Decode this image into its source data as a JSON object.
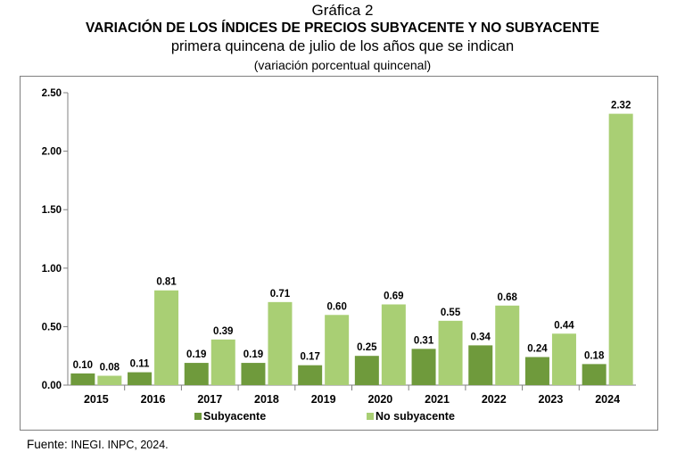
{
  "header": {
    "figure_label": "Gráfica 2",
    "title": "VARIACIÓN DE LOS ÍNDICES DE PRECIOS SUBYACENTE Y NO SUBYACENTE",
    "subtitle": "primera quincena de julio de los años que se indican",
    "unit_note": "(variación porcentual quincenal)"
  },
  "footer": {
    "source_label": "Fuente:",
    "source_text": "INEGI. INPC, 2024."
  },
  "colors": {
    "subyacente": "#6f9a3c",
    "no_subyacente": "#a9cf74"
  },
  "chart_data": {
    "type": "bar",
    "categories": [
      "2015",
      "2016",
      "2017",
      "2018",
      "2019",
      "2020",
      "2021",
      "2022",
      "2023",
      "2024"
    ],
    "series": [
      {
        "name": "Subyacente",
        "values": [
          0.1,
          0.11,
          0.19,
          0.19,
          0.17,
          0.25,
          0.31,
          0.34,
          0.24,
          0.18
        ]
      },
      {
        "name": "No subyacente",
        "values": [
          0.08,
          0.81,
          0.39,
          0.71,
          0.6,
          0.69,
          0.55,
          0.68,
          0.44,
          2.32
        ]
      }
    ],
    "value_labels": [
      [
        "0.10",
        "0.11",
        "0.19",
        "0.19",
        "0.17",
        "0.25",
        "0.31",
        "0.34",
        "0.24",
        "0.18"
      ],
      [
        "0.08",
        "0.81",
        "0.39",
        "0.71",
        "0.60",
        "0.69",
        "0.55",
        "0.68",
        "0.44",
        "2.32"
      ]
    ],
    "y_ticks": [
      "0.00",
      "0.50",
      "1.00",
      "1.50",
      "2.00",
      "2.50"
    ],
    "ylim": [
      0,
      2.5
    ],
    "grid": false,
    "legend_position": "bottom"
  }
}
